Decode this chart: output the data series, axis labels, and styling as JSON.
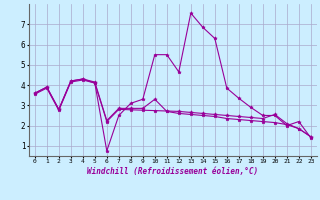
{
  "bg_color": "#cceeff",
  "grid_color": "#aaaacc",
  "line_color": "#990099",
  "marker": "*",
  "xlabel": "Windchill (Refroidissement éolien,°C)",
  "xlim": [
    -0.5,
    23.5
  ],
  "ylim": [
    0.5,
    8.0
  ],
  "yticks": [
    1,
    2,
    3,
    4,
    5,
    6,
    7
  ],
  "xticks": [
    0,
    1,
    2,
    3,
    4,
    5,
    6,
    7,
    8,
    9,
    10,
    11,
    12,
    13,
    14,
    15,
    16,
    17,
    18,
    19,
    20,
    21,
    22,
    23
  ],
  "series": [
    [
      3.6,
      3.9,
      2.8,
      4.2,
      4.3,
      4.1,
      0.75,
      2.5,
      3.1,
      3.3,
      5.5,
      5.5,
      4.65,
      7.55,
      6.85,
      6.3,
      3.85,
      3.35,
      2.9,
      2.5,
      2.5,
      2.0,
      2.2,
      1.4
    ],
    [
      3.6,
      3.9,
      2.8,
      4.2,
      4.3,
      4.15,
      2.25,
      2.85,
      2.85,
      2.85,
      3.3,
      2.7,
      2.6,
      2.55,
      2.5,
      2.45,
      2.35,
      2.3,
      2.25,
      2.2,
      2.15,
      2.05,
      1.85,
      1.45
    ],
    [
      3.55,
      3.85,
      2.75,
      4.15,
      4.25,
      4.1,
      2.2,
      2.8,
      2.78,
      2.76,
      2.74,
      2.72,
      2.7,
      2.65,
      2.6,
      2.55,
      2.5,
      2.45,
      2.4,
      2.35,
      2.55,
      2.1,
      1.85,
      1.45
    ]
  ]
}
